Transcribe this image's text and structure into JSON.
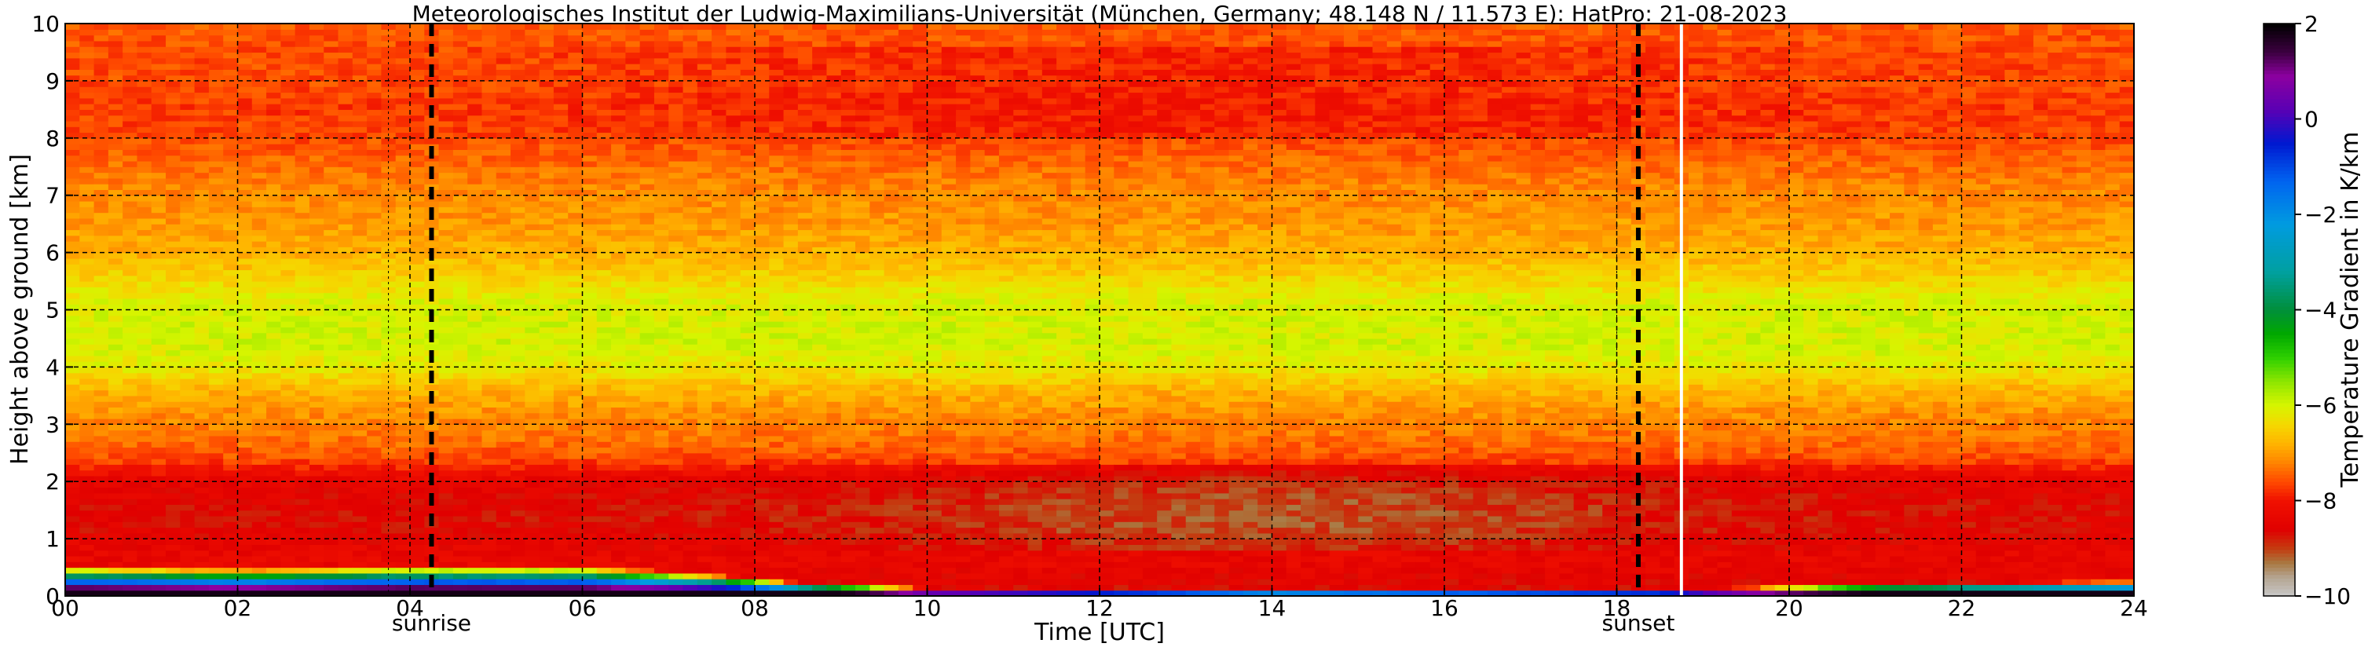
{
  "chart_data": {
    "type": "heatmap",
    "title": "Meteorologisches Institut der Ludwig-Maximilians-Universität (München, Germany; 48.148 N / 11.573 E):    HatPro: 21-08-2023",
    "xlabel": "Time [UTC]",
    "ylabel": "Height above ground [km]",
    "xlim": [
      0,
      24
    ],
    "ylim": [
      0,
      10
    ],
    "x_ticks": [
      "00",
      "02",
      "04",
      "06",
      "08",
      "10",
      "12",
      "14",
      "16",
      "18",
      "20",
      "22",
      "24"
    ],
    "y_ticks": [
      "0",
      "1",
      "2",
      "3",
      "4",
      "5",
      "6",
      "7",
      "8",
      "9",
      "10"
    ],
    "grid": true,
    "colorbar": {
      "label": "Temperature Gradient in K/km",
      "range": [
        -10,
        2
      ],
      "ticks": [
        "2",
        "0",
        "−2",
        "−4",
        "−6",
        "−8",
        "−10"
      ],
      "colors": [
        {
          "v": -10.0,
          "c": "#c8c8c8"
        },
        {
          "v": -9.6,
          "c": "#b4a490"
        },
        {
          "v": -9.3,
          "c": "#a97840"
        },
        {
          "v": -9.0,
          "c": "#c43c10"
        },
        {
          "v": -8.6,
          "c": "#e00000"
        },
        {
          "v": -8.0,
          "c": "#f01000"
        },
        {
          "v": -7.6,
          "c": "#ff4a00"
        },
        {
          "v": -7.2,
          "c": "#ff8400"
        },
        {
          "v": -6.8,
          "c": "#ffb400"
        },
        {
          "v": -6.4,
          "c": "#f5d800"
        },
        {
          "v": -6.0,
          "c": "#d6f500"
        },
        {
          "v": -5.5,
          "c": "#8ee600"
        },
        {
          "v": -5.0,
          "c": "#2ed000"
        },
        {
          "v": -4.5,
          "c": "#00a800"
        },
        {
          "v": -4.0,
          "c": "#008f3a"
        },
        {
          "v": -3.2,
          "c": "#00a0a0"
        },
        {
          "v": -2.2,
          "c": "#009be0"
        },
        {
          "v": -1.3,
          "c": "#0064f0"
        },
        {
          "v": -0.5,
          "c": "#0018d0"
        },
        {
          "v": 0.2,
          "c": "#5a00b4"
        },
        {
          "v": 0.9,
          "c": "#8c00a0"
        },
        {
          "v": 1.4,
          "c": "#3c0040"
        },
        {
          "v": 2.0,
          "c": "#000000"
        }
      ]
    },
    "profile": {
      "heights_km": [
        0.0,
        0.3,
        0.6,
        0.9,
        1.2,
        1.6,
        2.0,
        2.4,
        2.8,
        3.2,
        3.6,
        4.0,
        4.4,
        4.8,
        5.2,
        5.6,
        6.0,
        6.4,
        6.8,
        7.2,
        7.6,
        8.0,
        8.5,
        9.0,
        9.5,
        10.0
      ],
      "gradient_K_per_km": [
        -8.7,
        -8.5,
        -8.3,
        -8.4,
        -8.6,
        -8.6,
        -8.4,
        -7.6,
        -7.3,
        -7.1,
        -6.8,
        -6.2,
        -6.0,
        -6.0,
        -6.1,
        -6.5,
        -6.8,
        -7.0,
        -7.1,
        -7.2,
        -7.4,
        -7.6,
        -7.7,
        -7.6,
        -7.6,
        -7.5
      ]
    },
    "inversion_depth_km": [
      {
        "t": 0,
        "d": 0.55
      },
      {
        "t": 2,
        "d": 0.5
      },
      {
        "t": 4,
        "d": 0.55
      },
      {
        "t": 6,
        "d": 0.55
      },
      {
        "t": 7.5,
        "d": 0.4
      },
      {
        "t": 8.5,
        "d": 0.25
      },
      {
        "t": 10,
        "d": 0.15
      },
      {
        "t": 14,
        "d": 0.1
      },
      {
        "t": 18.5,
        "d": 0.12
      },
      {
        "t": 21,
        "d": 0.22
      },
      {
        "t": 24,
        "d": 0.28
      }
    ],
    "vertical_lines": [
      {
        "t": 4.25,
        "label": "sunrise",
        "style": "dashed",
        "color": "#000000"
      },
      {
        "t": 18.25,
        "label": "sunset",
        "style": "dashed",
        "color": "#000000"
      },
      {
        "t": 18.75,
        "label": "",
        "style": "solid",
        "color": "#ffffff"
      }
    ]
  }
}
